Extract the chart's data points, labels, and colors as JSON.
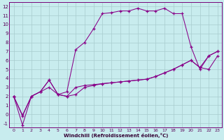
{
  "background_color": "#c8ecee",
  "grid_color": "#a8ccce",
  "line_color": "#880088",
  "xlabel": "Windchill (Refroidissement éolien,°C)",
  "xlim_min": -0.5,
  "xlim_max": 23.5,
  "ylim_min": -1.5,
  "ylim_max": 12.5,
  "xticks": [
    0,
    1,
    2,
    3,
    4,
    5,
    6,
    7,
    8,
    9,
    10,
    11,
    12,
    13,
    14,
    15,
    16,
    17,
    18,
    19,
    20,
    21,
    22,
    23
  ],
  "yticks": [
    -1,
    0,
    1,
    2,
    3,
    4,
    5,
    6,
    7,
    8,
    9,
    10,
    11,
    12
  ],
  "line1_x": [
    0,
    1,
    2,
    3,
    4,
    5,
    6,
    7,
    8,
    9,
    10,
    11,
    12,
    13,
    14,
    15,
    16,
    17,
    18,
    19,
    20,
    21,
    22,
    23
  ],
  "line1_y": [
    2.0,
    -0.2,
    2.0,
    2.5,
    3.8,
    2.2,
    2.0,
    3.0,
    3.2,
    3.3,
    3.4,
    3.5,
    3.6,
    3.7,
    3.8,
    3.9,
    4.2,
    4.6,
    5.0,
    5.5,
    6.0,
    5.2,
    5.0,
    6.5
  ],
  "line2_x": [
    0,
    1,
    2,
    3,
    4,
    5,
    6,
    7,
    8,
    9,
    10,
    11,
    12,
    13,
    14,
    15,
    16,
    17,
    18,
    19,
    20,
    21,
    22,
    23
  ],
  "line2_y": [
    2.0,
    -0.1,
    2.0,
    2.5,
    3.8,
    2.2,
    2.5,
    7.2,
    8.0,
    9.5,
    11.2,
    11.3,
    11.5,
    11.5,
    11.8,
    11.5,
    11.5,
    11.8,
    11.2,
    11.2,
    7.5,
    5.0,
    6.5,
    7.0
  ],
  "line3_x": [
    0,
    1,
    2,
    3,
    4,
    5,
    6,
    7,
    8,
    9,
    10,
    11,
    12,
    13,
    14,
    15,
    16,
    17,
    18,
    19,
    20,
    21,
    22,
    23
  ],
  "line3_y": [
    2.0,
    -1.2,
    2.0,
    2.5,
    3.0,
    2.2,
    2.0,
    2.2,
    3.0,
    3.2,
    3.4,
    3.5,
    3.6,
    3.7,
    3.8,
    3.9,
    4.2,
    4.6,
    5.0,
    5.5,
    6.0,
    5.2,
    6.5,
    7.0
  ]
}
